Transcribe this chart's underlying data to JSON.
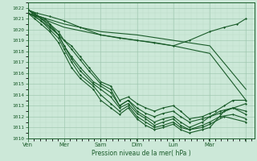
{
  "xlabel": "Pression niveau de la mer( hPa )",
  "bg_color": "#cce8d8",
  "grid_major_color": "#99c4aa",
  "grid_minor_color": "#b8d8c4",
  "line_color": "#1a5c2a",
  "ylim": [
    1010,
    1022.5
  ],
  "xlim": [
    0,
    5.2
  ],
  "yticks": [
    1010,
    1011,
    1012,
    1013,
    1014,
    1015,
    1016,
    1017,
    1018,
    1019,
    1020,
    1021,
    1022
  ],
  "xtick_positions": [
    0.0,
    0.83,
    1.67,
    2.5,
    3.33,
    4.17,
    5.0
  ],
  "xtick_labels": [
    "Ven",
    "Mer",
    "Sam",
    "Dim",
    "Lun",
    "Mar",
    ""
  ],
  "xtick_show": [
    true,
    true,
    true,
    true,
    true,
    true,
    false
  ],
  "lines": [
    {
      "x": [
        0.0,
        0.83,
        1.67,
        2.5,
        3.33,
        4.17,
        5.0
      ],
      "y": [
        1021.5,
        1020.5,
        1019.8,
        1019.5,
        1019.0,
        1018.5,
        1014.5
      ],
      "marker": false,
      "lw": 0.8
    },
    {
      "x": [
        0.0,
        0.83,
        1.67,
        2.5,
        3.33,
        4.17,
        5.0
      ],
      "y": [
        1021.5,
        1020.2,
        1019.5,
        1019.0,
        1018.5,
        1017.8,
        1013.5
      ],
      "marker": false,
      "lw": 0.8
    },
    {
      "x": [
        0.0,
        0.2,
        0.5,
        0.83,
        1.2,
        1.67,
        2.1,
        2.5,
        2.9,
        3.33,
        3.7,
        4.17,
        4.5,
        4.8,
        5.0
      ],
      "y": [
        1021.8,
        1021.5,
        1021.2,
        1020.8,
        1020.2,
        1019.5,
        1019.2,
        1019.0,
        1018.8,
        1018.5,
        1019.0,
        1019.8,
        1020.2,
        1020.5,
        1021.0
      ],
      "marker": true,
      "lw": 0.8
    },
    {
      "x": [
        0.0,
        0.1,
        0.2,
        0.4,
        0.5,
        0.6,
        0.7,
        0.83,
        1.0,
        1.2,
        1.4,
        1.67,
        1.9,
        2.1,
        2.3,
        2.5,
        2.7,
        2.9,
        3.1,
        3.33,
        3.5,
        3.7,
        4.0,
        4.17,
        4.3,
        4.5,
        4.7,
        5.0
      ],
      "y": [
        1021.8,
        1021.6,
        1021.3,
        1021.0,
        1020.5,
        1020.0,
        1019.5,
        1019.0,
        1018.5,
        1017.5,
        1016.5,
        1015.2,
        1014.8,
        1013.5,
        1013.8,
        1013.2,
        1012.8,
        1012.5,
        1012.8,
        1013.0,
        1012.5,
        1011.8,
        1012.0,
        1012.3,
        1012.5,
        1013.0,
        1013.5,
        1013.5
      ],
      "marker": true,
      "lw": 0.8
    },
    {
      "x": [
        0.0,
        0.1,
        0.3,
        0.5,
        0.7,
        0.83,
        1.0,
        1.2,
        1.4,
        1.67,
        1.9,
        2.1,
        2.3,
        2.5,
        2.7,
        2.9,
        3.1,
        3.33,
        3.5,
        3.7,
        4.0,
        4.17,
        4.4,
        4.7,
        5.0
      ],
      "y": [
        1021.8,
        1021.5,
        1021.0,
        1020.5,
        1019.8,
        1019.0,
        1018.2,
        1017.2,
        1016.2,
        1015.0,
        1014.5,
        1013.0,
        1013.5,
        1012.8,
        1012.3,
        1012.0,
        1012.3,
        1012.5,
        1012.0,
        1011.5,
        1011.8,
        1012.0,
        1012.3,
        1012.8,
        1012.5
      ],
      "marker": true,
      "lw": 0.8
    },
    {
      "x": [
        0.0,
        0.15,
        0.3,
        0.5,
        0.7,
        0.83,
        1.0,
        1.2,
        1.5,
        1.67,
        1.9,
        2.1,
        2.3,
        2.5,
        2.7,
        2.9,
        3.1,
        3.33,
        3.5,
        3.7,
        4.0,
        4.17,
        4.4,
        4.7,
        5.0
      ],
      "y": [
        1021.5,
        1021.2,
        1020.8,
        1020.2,
        1019.5,
        1018.5,
        1017.5,
        1016.5,
        1015.2,
        1014.8,
        1014.2,
        1013.0,
        1013.5,
        1012.5,
        1012.0,
        1011.5,
        1011.8,
        1012.0,
        1011.5,
        1011.0,
        1011.5,
        1012.0,
        1012.5,
        1012.8,
        1012.2
      ],
      "marker": true,
      "lw": 0.8
    },
    {
      "x": [
        0.0,
        0.15,
        0.3,
        0.5,
        0.7,
        0.83,
        1.0,
        1.2,
        1.5,
        1.67,
        1.9,
        2.1,
        2.3,
        2.5,
        2.7,
        2.9,
        3.1,
        3.33,
        3.5,
        3.7,
        4.0,
        4.17,
        4.4,
        4.7,
        5.0
      ],
      "y": [
        1021.8,
        1021.5,
        1021.0,
        1020.3,
        1019.5,
        1018.5,
        1017.3,
        1016.2,
        1015.0,
        1014.5,
        1013.8,
        1012.8,
        1013.2,
        1012.3,
        1011.8,
        1011.2,
        1011.5,
        1011.8,
        1011.2,
        1010.8,
        1011.2,
        1011.5,
        1012.0,
        1012.2,
        1011.8
      ],
      "marker": true,
      "lw": 0.8
    },
    {
      "x": [
        0.0,
        0.15,
        0.3,
        0.5,
        0.7,
        0.83,
        1.0,
        1.2,
        1.5,
        1.67,
        1.9,
        2.1,
        2.3,
        2.5,
        2.7,
        2.9,
        3.1,
        3.33,
        3.5,
        3.7,
        4.0,
        4.17,
        4.5,
        5.0
      ],
      "y": [
        1021.5,
        1021.2,
        1020.8,
        1020.0,
        1019.2,
        1018.2,
        1017.0,
        1015.8,
        1014.8,
        1014.0,
        1013.2,
        1012.5,
        1013.0,
        1012.0,
        1011.5,
        1011.0,
        1011.2,
        1011.5,
        1011.0,
        1010.8,
        1011.0,
        1011.3,
        1012.0,
        1011.5
      ],
      "marker": true,
      "lw": 0.8
    },
    {
      "x": [
        0.0,
        0.15,
        0.3,
        0.5,
        0.7,
        0.83,
        1.0,
        1.2,
        1.5,
        1.67,
        1.9,
        2.1,
        2.3,
        2.5,
        2.7,
        2.9,
        3.1,
        3.33,
        3.5,
        3.7,
        4.0,
        4.17,
        4.5,
        5.0
      ],
      "y": [
        1021.5,
        1021.0,
        1020.5,
        1019.8,
        1018.8,
        1017.8,
        1016.5,
        1015.5,
        1014.5,
        1013.5,
        1012.8,
        1012.2,
        1012.8,
        1011.8,
        1011.2,
        1010.8,
        1011.0,
        1011.3,
        1010.8,
        1010.5,
        1010.8,
        1011.0,
        1012.5,
        1013.2
      ],
      "marker": true,
      "lw": 0.8
    }
  ]
}
